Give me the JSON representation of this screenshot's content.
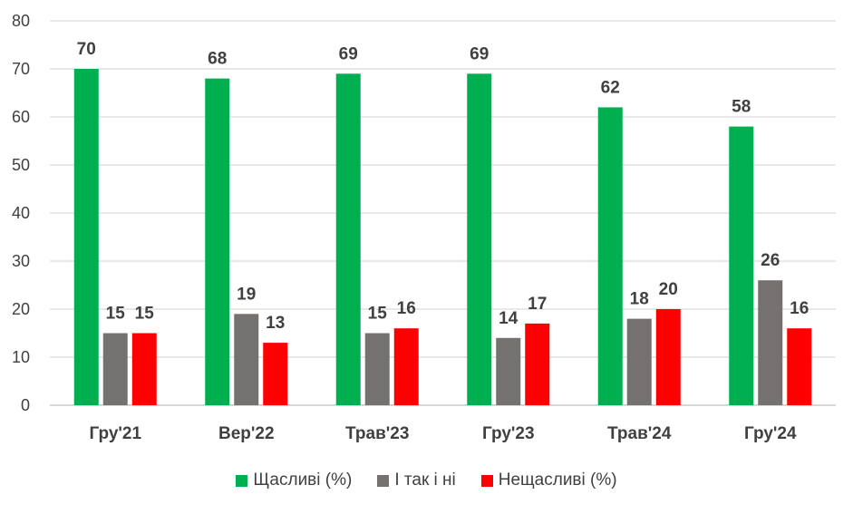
{
  "chart_data": {
    "type": "bar",
    "categories": [
      "Гру'21",
      "Вер'22",
      "Трав'23",
      "Гру'23",
      "Трав'24",
      "Гру'24"
    ],
    "series": [
      {
        "name": "Щасливі (%)",
        "color": "#00b050",
        "values": [
          70,
          68,
          69,
          69,
          62,
          58
        ]
      },
      {
        "name": "І так і ні",
        "color": "#767171",
        "values": [
          15,
          19,
          15,
          14,
          18,
          26
        ]
      },
      {
        "name": "Нещасливі (%)",
        "color": "#ff0000",
        "values": [
          15,
          13,
          16,
          17,
          20,
          16
        ]
      }
    ],
    "ylim": [
      0,
      80
    ],
    "yticks": [
      0,
      10,
      20,
      30,
      40,
      50,
      60,
      70,
      80
    ],
    "grid": true,
    "legend": "bottom",
    "title": "",
    "xlabel": "",
    "ylabel": ""
  }
}
